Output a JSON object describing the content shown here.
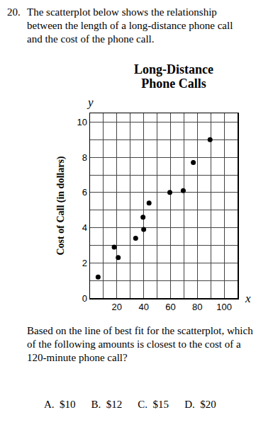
{
  "question_number": "20.",
  "prompt": "The scatterplot below shows the relationship between the length of a long-distance phone call and the cost of the phone call.",
  "question": "Based on the line of best fit for the scatterplot, which of the following amounts is closest to the cost of a 120-minute phone call?",
  "choices": [
    {
      "letter": "A.",
      "text": "$10"
    },
    {
      "letter": "B.",
      "text": "$12"
    },
    {
      "letter": "C.",
      "text": "$15"
    },
    {
      "letter": "D.",
      "text": "$20"
    }
  ],
  "chart_data": {
    "type": "scatter",
    "title": "Long-Distance Phone Calls",
    "ylabel": "Cost of Call (in dollars)",
    "axis_letters": {
      "x": "x",
      "y": "y"
    },
    "x": [
      6,
      18,
      21,
      34,
      39.5,
      40,
      44,
      59.5,
      69.5,
      77,
      89.5
    ],
    "values": [
      1.2,
      2.9,
      2.3,
      3.4,
      4.6,
      3.9,
      5.4,
      6.0,
      6.1,
      7.7,
      9.0
    ],
    "color": "#000000",
    "marker": "circle",
    "xlim": [
      0,
      110
    ],
    "xticks": [
      20,
      40,
      60,
      80,
      100
    ],
    "ylim": [
      0,
      10.5
    ],
    "yticks": [
      0,
      2,
      4,
      6,
      8,
      10
    ],
    "grid": true
  }
}
